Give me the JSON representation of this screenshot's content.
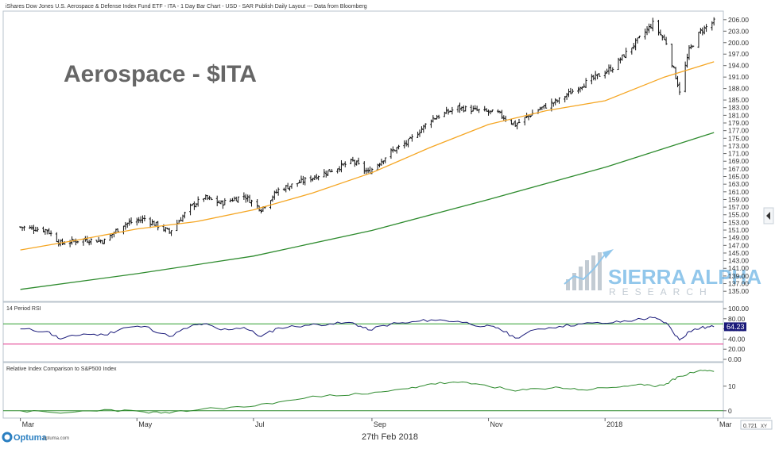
{
  "header": {
    "title": "iShares Dow Jones U.S. Aerospace & Defense Index Fund ETF - ITA - 1 Day Bar Chart - USD - SAR Publish Daily Layout --- Data from Bloomberg"
  },
  "overlay_title": "Aerospace - $ITA",
  "watermark": {
    "line1": "SIERRA ALPHA",
    "line2": "RESEARCH"
  },
  "footer": {
    "brand": "Optuma",
    "url": "optuma.com",
    "date": "27th Feb 2018",
    "scale_readout": "0.721",
    "scale_mode": "XY"
  },
  "toolbar": {
    "collapse_icon": "chevron-left-icon"
  },
  "colors": {
    "price_bars": "#111111",
    "ma50": "#f5a623",
    "ma200": "#2e8b2e",
    "rsi_line": "#1a1a7a",
    "rsi_upper": "#2e9e2e",
    "rsi_lower": "#e0338a",
    "relative_line": "#2e8b2e",
    "last_value_bg": "#1a1a7a"
  },
  "chart_data": [
    {
      "type": "bar",
      "subtype": "ohlc-daily",
      "title": "",
      "x_labels": [
        "Mar",
        "May",
        "Jul",
        "Sep",
        "Nov",
        "2018",
        "Mar"
      ],
      "ylim": [
        134,
        207
      ],
      "y_ticks": [
        "206.00",
        "203.00",
        "200.00",
        "197.00",
        "194.00",
        "191.00",
        "188.00",
        "185.00",
        "183.00",
        "181.00",
        "179.00",
        "177.00",
        "175.00",
        "173.00",
        "171.00",
        "169.00",
        "167.00",
        "165.00",
        "163.00",
        "161.00",
        "159.00",
        "157.00",
        "155.00",
        "153.00",
        "151.00",
        "149.00",
        "147.00",
        "145.00",
        "143.00",
        "141.00",
        "139.00",
        "137.00",
        "135.00"
      ],
      "price_points": [
        {
          "date": "2017-03-01",
          "value": 151.8
        },
        {
          "date": "2017-03-15",
          "value": 151.0
        },
        {
          "date": "2017-03-22",
          "value": 147.5
        },
        {
          "date": "2017-04-03",
          "value": 148.5
        },
        {
          "date": "2017-04-14",
          "value": 148.2
        },
        {
          "date": "2017-04-24",
          "value": 152.5
        },
        {
          "date": "2017-05-05",
          "value": 154.0
        },
        {
          "date": "2017-05-18",
          "value": 150.5
        },
        {
          "date": "2017-05-29",
          "value": 157.0
        },
        {
          "date": "2017-06-05",
          "value": 159.5
        },
        {
          "date": "2017-06-14",
          "value": 158.0
        },
        {
          "date": "2017-06-26",
          "value": 160.0
        },
        {
          "date": "2017-07-05",
          "value": 156.5
        },
        {
          "date": "2017-07-14",
          "value": 161.5
        },
        {
          "date": "2017-07-28",
          "value": 164.0
        },
        {
          "date": "2017-08-10",
          "value": 166.5
        },
        {
          "date": "2017-08-22",
          "value": 169.0
        },
        {
          "date": "2017-08-30",
          "value": 166.0
        },
        {
          "date": "2017-09-11",
          "value": 171.5
        },
        {
          "date": "2017-09-20",
          "value": 174.0
        },
        {
          "date": "2017-10-02",
          "value": 180.0
        },
        {
          "date": "2017-10-16",
          "value": 183.0
        },
        {
          "date": "2017-10-30",
          "value": 182.0
        },
        {
          "date": "2017-11-06",
          "value": 181.5
        },
        {
          "date": "2017-11-15",
          "value": 178.5
        },
        {
          "date": "2017-11-27",
          "value": 182.5
        },
        {
          "date": "2017-12-08",
          "value": 185.0
        },
        {
          "date": "2017-12-20",
          "value": 189.0
        },
        {
          "date": "2018-01-05",
          "value": 193.5
        },
        {
          "date": "2018-01-17",
          "value": 200.0
        },
        {
          "date": "2018-01-26",
          "value": 205.0
        },
        {
          "date": "2018-02-02",
          "value": 200.0
        },
        {
          "date": "2018-02-09",
          "value": 187.5
        },
        {
          "date": "2018-02-14",
          "value": 198.0
        },
        {
          "date": "2018-02-20",
          "value": 203.0
        },
        {
          "date": "2018-02-27",
          "value": 205.5
        }
      ],
      "series": [
        {
          "name": "",
          "role": "moving-average-short",
          "points": [
            {
              "date": "2017-03-01",
              "value": 145.8
            },
            {
              "date": "2017-04-01",
              "value": 148.5
            },
            {
              "date": "2017-05-01",
              "value": 151.3
            },
            {
              "date": "2017-06-01",
              "value": 153.2
            },
            {
              "date": "2017-07-01",
              "value": 156.3
            },
            {
              "date": "2017-08-01",
              "value": 160.7
            },
            {
              "date": "2017-09-01",
              "value": 166.0
            },
            {
              "date": "2017-10-01",
              "value": 172.5
            },
            {
              "date": "2017-11-01",
              "value": 178.6
            },
            {
              "date": "2017-12-01",
              "value": 182.2
            },
            {
              "date": "2018-01-01",
              "value": 184.8
            },
            {
              "date": "2018-02-01",
              "value": 191.0
            },
            {
              "date": "2018-02-27",
              "value": 195.0
            }
          ]
        },
        {
          "name": "",
          "role": "moving-average-long",
          "points": [
            {
              "date": "2017-03-01",
              "value": 135.5
            },
            {
              "date": "2017-05-01",
              "value": 139.6
            },
            {
              "date": "2017-07-01",
              "value": 144.2
            },
            {
              "date": "2017-09-01",
              "value": 150.9
            },
            {
              "date": "2017-11-01",
              "value": 159.0
            },
            {
              "date": "2018-01-01",
              "value": 167.4
            },
            {
              "date": "2018-02-27",
              "value": 176.5
            }
          ]
        }
      ]
    },
    {
      "type": "line",
      "title": "14 Period RSI",
      "ylim": [
        0,
        100
      ],
      "y_ticks": [
        "100.00",
        "80.00",
        "60.00",
        "40.00",
        "20.00",
        "0.00"
      ],
      "levels": [
        70,
        30
      ],
      "last_value": "64.23",
      "series": [
        {
          "name": "",
          "points": [
            {
              "date": "2017-03-01",
              "value": 60
            },
            {
              "date": "2017-03-15",
              "value": 55
            },
            {
              "date": "2017-03-22",
              "value": 40
            },
            {
              "date": "2017-04-03",
              "value": 50
            },
            {
              "date": "2017-04-14",
              "value": 48
            },
            {
              "date": "2017-04-24",
              "value": 62
            },
            {
              "date": "2017-05-05",
              "value": 65
            },
            {
              "date": "2017-05-18",
              "value": 45
            },
            {
              "date": "2017-05-29",
              "value": 65
            },
            {
              "date": "2017-06-05",
              "value": 70
            },
            {
              "date": "2017-06-14",
              "value": 58
            },
            {
              "date": "2017-06-26",
              "value": 63
            },
            {
              "date": "2017-07-05",
              "value": 45
            },
            {
              "date": "2017-07-14",
              "value": 62
            },
            {
              "date": "2017-07-28",
              "value": 67
            },
            {
              "date": "2017-08-10",
              "value": 70
            },
            {
              "date": "2017-08-22",
              "value": 72
            },
            {
              "date": "2017-08-30",
              "value": 58
            },
            {
              "date": "2017-09-11",
              "value": 70
            },
            {
              "date": "2017-09-20",
              "value": 72
            },
            {
              "date": "2017-10-02",
              "value": 78
            },
            {
              "date": "2017-10-16",
              "value": 75
            },
            {
              "date": "2017-10-30",
              "value": 65
            },
            {
              "date": "2017-11-06",
              "value": 62
            },
            {
              "date": "2017-11-15",
              "value": 42
            },
            {
              "date": "2017-11-27",
              "value": 60
            },
            {
              "date": "2017-12-08",
              "value": 65
            },
            {
              "date": "2017-12-20",
              "value": 70
            },
            {
              "date": "2018-01-05",
              "value": 72
            },
            {
              "date": "2018-01-17",
              "value": 78
            },
            {
              "date": "2018-01-26",
              "value": 82
            },
            {
              "date": "2018-02-02",
              "value": 72
            },
            {
              "date": "2018-02-09",
              "value": 38
            },
            {
              "date": "2018-02-14",
              "value": 55
            },
            {
              "date": "2018-02-20",
              "value": 62
            },
            {
              "date": "2018-02-27",
              "value": 64.23
            }
          ]
        }
      ]
    },
    {
      "type": "line",
      "title": "Relative Index Comparison to S&P500 Index",
      "ylim": [
        -2,
        18
      ],
      "y_ticks": [
        "10",
        "0"
      ],
      "series": [
        {
          "name": "",
          "points": [
            {
              "date": "2017-03-01",
              "value": 0
            },
            {
              "date": "2017-03-22",
              "value": -1.0
            },
            {
              "date": "2017-04-14",
              "value": 0.5
            },
            {
              "date": "2017-05-05",
              "value": -0.5
            },
            {
              "date": "2017-05-18",
              "value": -1.0
            },
            {
              "date": "2017-06-05",
              "value": 0.8
            },
            {
              "date": "2017-06-26",
              "value": 1.5
            },
            {
              "date": "2017-07-14",
              "value": 3.5
            },
            {
              "date": "2017-08-10",
              "value": 6.5
            },
            {
              "date": "2017-08-30",
              "value": 6.8
            },
            {
              "date": "2017-09-20",
              "value": 9.0
            },
            {
              "date": "2017-10-02",
              "value": 11.0
            },
            {
              "date": "2017-10-16",
              "value": 11.5
            },
            {
              "date": "2017-10-30",
              "value": 10.5
            },
            {
              "date": "2017-11-15",
              "value": 8.0
            },
            {
              "date": "2017-11-27",
              "value": 9.0
            },
            {
              "date": "2017-12-08",
              "value": 9.5
            },
            {
              "date": "2017-12-20",
              "value": 8.5
            },
            {
              "date": "2018-01-05",
              "value": 9.5
            },
            {
              "date": "2018-01-17",
              "value": 10.5
            },
            {
              "date": "2018-01-26",
              "value": 10.0
            },
            {
              "date": "2018-02-02",
              "value": 11.0
            },
            {
              "date": "2018-02-09",
              "value": 14.0
            },
            {
              "date": "2018-02-20",
              "value": 16.5
            },
            {
              "date": "2018-02-27",
              "value": 16.0
            }
          ]
        }
      ]
    }
  ]
}
